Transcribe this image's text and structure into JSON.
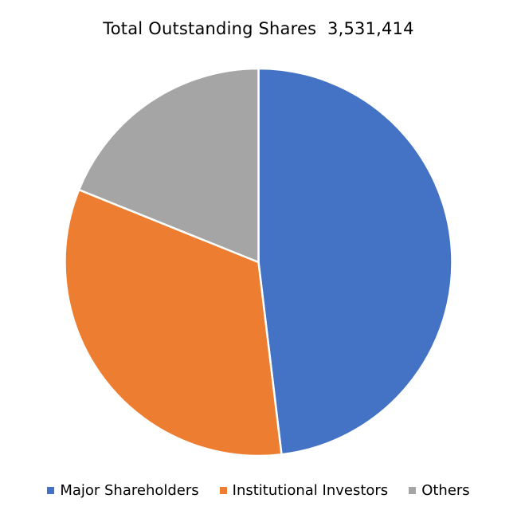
{
  "chart_data": {
    "type": "pie",
    "title": "Total Outstanding Shares  3,531,414",
    "categories": [
      "Major Shareholders",
      "Institutional Investors",
      "Others"
    ],
    "values": [
      48.1,
      33.0,
      18.9
    ],
    "colors": [
      "#4472C4",
      "#ED7D31",
      "#A5A5A5"
    ],
    "start_angle_deg": 0,
    "direction": "clockwise",
    "legend_position": "bottom",
    "slice_border_color": "#FFFFFF"
  }
}
